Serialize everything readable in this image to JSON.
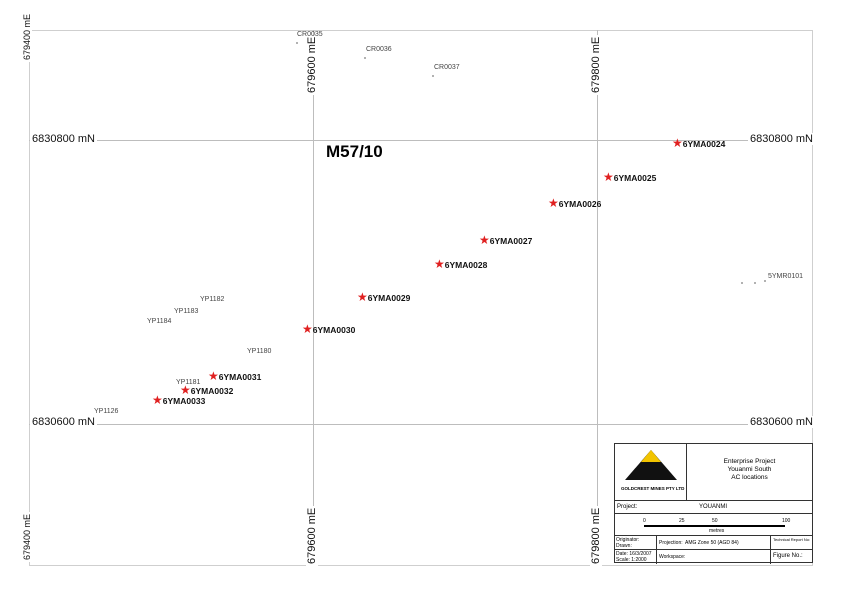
{
  "map": {
    "lease_label": "M57/10",
    "northings": {
      "upper": "6830800 mN",
      "lower": "6830600 mN",
      "upper_left_partial": "6830800 mN",
      "lower_left_partial": "6830600 mN"
    },
    "eastings": {
      "e1": "679600 mE",
      "e2": "679800 mE",
      "e0_partial": "679400 mE"
    },
    "ac_holes": [
      {
        "id": "6YMA0024"
      },
      {
        "id": "6YMA0025"
      },
      {
        "id": "6YMA0026"
      },
      {
        "id": "6YMA0027"
      },
      {
        "id": "6YMA0028"
      },
      {
        "id": "6YMA0029"
      },
      {
        "id": "6YMA0030"
      },
      {
        "id": "6YMA0031"
      },
      {
        "id": "6YMA0032"
      },
      {
        "id": "6YMA0033"
      }
    ],
    "other_holes": [
      {
        "id": "CR0035"
      },
      {
        "id": "CR0036"
      },
      {
        "id": "CR0037"
      },
      {
        "id": "YP1182"
      },
      {
        "id": "YP1183"
      },
      {
        "id": "YP1184"
      },
      {
        "id": "YP1180"
      },
      {
        "id": "YP1181"
      },
      {
        "id": "YP1126"
      },
      {
        "id": "5YMR0101"
      }
    ],
    "marker_color": "#e02020"
  },
  "title_block": {
    "company": "GOLDCREST MINES PTY LTD",
    "title_line1": "Enterprise Project",
    "title_line2": "Youanmi South",
    "title_line3": "AC locations",
    "project_label": "Project:",
    "project_value": "YOUANMI",
    "scale_ticks": [
      "0",
      "25",
      "50",
      "100"
    ],
    "scale_unit": "metres",
    "originator_label": "Originator:",
    "drawn_label": "Drawn:",
    "projection_label": "Projection:",
    "projection_value": "AMG Zone 50 (AGD 84)",
    "tech_report_label": "Technical Report No:",
    "date_label": "Date:",
    "date_value": "16/3/2007",
    "scale_label": "Scale:",
    "scale_value": "1:2000",
    "workspace_label": "Workspace:",
    "figure_label": "Figure No.:"
  }
}
